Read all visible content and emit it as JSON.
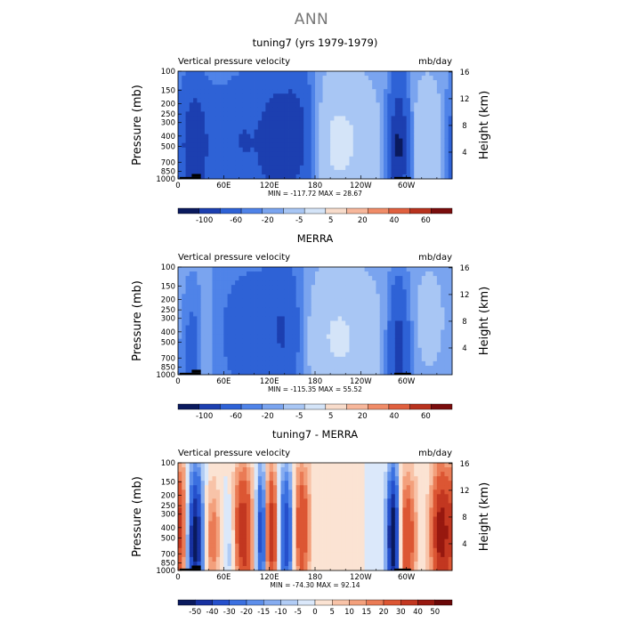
{
  "page": {
    "title": "ANN"
  },
  "colors": {
    "abs_scale": [
      "#0a1a5e",
      "#1c3fb0",
      "#2e62d6",
      "#4f83e8",
      "#7aa4ef",
      "#a8c6f4",
      "#d4e4f8",
      "#f8dccb",
      "#f7b79b",
      "#f08c68",
      "#e0603f",
      "#b8321e",
      "#7a0d0d"
    ],
    "diff_scale": [
      "#0a1a5e",
      "#1731a0",
      "#2550cc",
      "#3b70e0",
      "#5d8eea",
      "#86acf0",
      "#b1ccf5",
      "#dbe8fa",
      "#fbe3d3",
      "#f8c3a8",
      "#f3a07c",
      "#ea7b55",
      "#dc5633",
      "#c23720",
      "#97180f",
      "#6a0707"
    ],
    "land": "#000000"
  },
  "panels": [
    {
      "title": "tuning7 (yrs 1979-1979)",
      "left_label": "Vertical pressure velocity",
      "right_label": "mb/day",
      "stats": "MIN = -117.72   MAX =  28.67",
      "scale": "abs",
      "colorbar_labels": [
        "-100",
        "-60",
        "-20",
        "-5",
        "5",
        "20",
        "40",
        "60"
      ]
    },
    {
      "title": "MERRA",
      "left_label": "Vertical pressure velocity",
      "right_label": "mb/day",
      "stats": "MIN = -115.35   MAX =  55.52",
      "scale": "abs",
      "colorbar_labels": [
        "-100",
        "-60",
        "-20",
        "-5",
        "5",
        "20",
        "40",
        "60"
      ]
    },
    {
      "title": "tuning7 - MERRA",
      "left_label": "Vertical pressure velocity",
      "right_label": "mb/day",
      "stats": "MIN = -74.30   MAX =  92.14",
      "scale": "diff",
      "colorbar_labels": [
        "-50",
        "-40",
        "-30",
        "-20",
        "-15",
        "-10",
        "-5",
        "0",
        "5",
        "10",
        "15",
        "20",
        "30",
        "40",
        "50"
      ]
    }
  ],
  "chart_data": [
    {
      "type": "heatmap",
      "title": "tuning7 (yrs 1979-1979)",
      "subtitle": "Vertical pressure velocity",
      "units": "mb/day",
      "xlabel": "",
      "ylabel": "Pressure (mb)",
      "y2label": "Height (km)",
      "x_ticks": [
        "0",
        "60E",
        "120E",
        "180",
        "120W",
        "60W"
      ],
      "y_ticks": [
        100,
        150,
        200,
        250,
        300,
        400,
        500,
        700,
        850,
        1000
      ],
      "y2_ticks": [
        4,
        8,
        12,
        16
      ],
      "y_scale": "log",
      "ylim": [
        1000,
        100
      ],
      "min": -117.72,
      "max": 28.67,
      "colorbar_levels": [
        -100,
        -60,
        -20,
        -5,
        5,
        20,
        40,
        60
      ],
      "features": [
        {
          "lon": 25,
          "width": 18,
          "amp": -100,
          "pmid": 500,
          "pspread": 1.0
        },
        {
          "lon": 40,
          "width": 7,
          "amp": 22,
          "pmid": 500,
          "pspread": 0.9
        },
        {
          "lon": 85,
          "width": 20,
          "amp": -60,
          "pmid": 450,
          "pspread": 1.0
        },
        {
          "lon": 125,
          "width": 14,
          "amp": -75,
          "pmid": 450,
          "pspread": 1.0
        },
        {
          "lon": 155,
          "width": 16,
          "amp": -90,
          "pmid": 400,
          "pspread": 1.0
        },
        {
          "lon": 210,
          "width": 35,
          "amp": 24,
          "pmid": 450,
          "pspread": 1.0
        },
        {
          "lon": 290,
          "width": 9,
          "amp": -110,
          "pmid": 500,
          "pspread": 1.0
        },
        {
          "lon": 330,
          "width": 18,
          "amp": 20,
          "pmid": 450,
          "pspread": 0.9
        }
      ]
    },
    {
      "type": "heatmap",
      "title": "MERRA",
      "subtitle": "Vertical pressure velocity",
      "units": "mb/day",
      "xlabel": "",
      "ylabel": "Pressure (mb)",
      "y2label": "Height (km)",
      "x_ticks": [
        "0",
        "60E",
        "120E",
        "180",
        "120W",
        "60W"
      ],
      "y_ticks": [
        100,
        150,
        200,
        250,
        300,
        400,
        500,
        700,
        850,
        1000
      ],
      "y2_ticks": [
        4,
        8,
        12,
        16
      ],
      "y_scale": "log",
      "ylim": [
        1000,
        100
      ],
      "min": -115.35,
      "max": 55.52,
      "colorbar_levels": [
        -100,
        -60,
        -20,
        -5,
        5,
        20,
        40,
        60
      ],
      "features": [
        {
          "lon": 20,
          "width": 10,
          "amp": -30,
          "pmid": 600,
          "pspread": 0.9
        },
        {
          "lon": 35,
          "width": 8,
          "amp": 18,
          "pmid": 500,
          "pspread": 0.9
        },
        {
          "lon": 100,
          "width": 35,
          "amp": -40,
          "pmid": 400,
          "pspread": 1.1
        },
        {
          "lon": 140,
          "width": 14,
          "amp": -45,
          "pmid": 400,
          "pspread": 1.0
        },
        {
          "lon": 210,
          "width": 38,
          "amp": 22,
          "pmid": 450,
          "pspread": 1.0
        },
        {
          "lon": 290,
          "width": 9,
          "amp": -80,
          "pmid": 600,
          "pspread": 1.0
        },
        {
          "lon": 330,
          "width": 20,
          "amp": 8,
          "pmid": 300,
          "pspread": 1.0
        }
      ]
    },
    {
      "type": "heatmap",
      "title": "tuning7 - MERRA",
      "subtitle": "Vertical pressure velocity",
      "units": "mb/day",
      "xlabel": "",
      "ylabel": "Pressure (mb)",
      "y2label": "Height (km)",
      "x_ticks": [
        "0",
        "60E",
        "120E",
        "180",
        "120W",
        "60W"
      ],
      "y_ticks": [
        100,
        150,
        200,
        250,
        300,
        400,
        500,
        700,
        850,
        1000
      ],
      "y2_ticks": [
        4,
        8,
        12,
        16
      ],
      "y_scale": "log",
      "ylim": [
        1000,
        100
      ],
      "min": -74.3,
      "max": 92.14,
      "colorbar_levels": [
        -50,
        -40,
        -30,
        -20,
        -15,
        -10,
        -5,
        0,
        5,
        10,
        15,
        20,
        30,
        40,
        50
      ],
      "features": [
        {
          "lon": 5,
          "width": 8,
          "amp": 30,
          "pmid": 400,
          "pspread": 1.0
        },
        {
          "lon": 22,
          "width": 8,
          "amp": -60,
          "pmid": 500,
          "pspread": 1.0
        },
        {
          "lon": 45,
          "width": 8,
          "amp": 20,
          "pmid": 500,
          "pspread": 0.8
        },
        {
          "lon": 70,
          "width": 8,
          "amp": -12,
          "pmid": 600,
          "pspread": 0.8
        },
        {
          "lon": 85,
          "width": 9,
          "amp": 40,
          "pmid": 450,
          "pspread": 1.0
        },
        {
          "lon": 110,
          "width": 5,
          "amp": -45,
          "pmid": 450,
          "pspread": 1.0
        },
        {
          "lon": 122,
          "width": 7,
          "amp": 40,
          "pmid": 450,
          "pspread": 1.0
        },
        {
          "lon": 142,
          "width": 7,
          "amp": -40,
          "pmid": 450,
          "pspread": 1.0
        },
        {
          "lon": 162,
          "width": 8,
          "amp": 30,
          "pmid": 400,
          "pspread": 1.0
        },
        {
          "lon": 283,
          "width": 6,
          "amp": -65,
          "pmid": 500,
          "pspread": 1.0
        },
        {
          "lon": 300,
          "width": 9,
          "amp": 30,
          "pmid": 500,
          "pspread": 1.0
        },
        {
          "lon": 345,
          "width": 9,
          "amp": 45,
          "pmid": 450,
          "pspread": 1.0
        }
      ]
    }
  ]
}
